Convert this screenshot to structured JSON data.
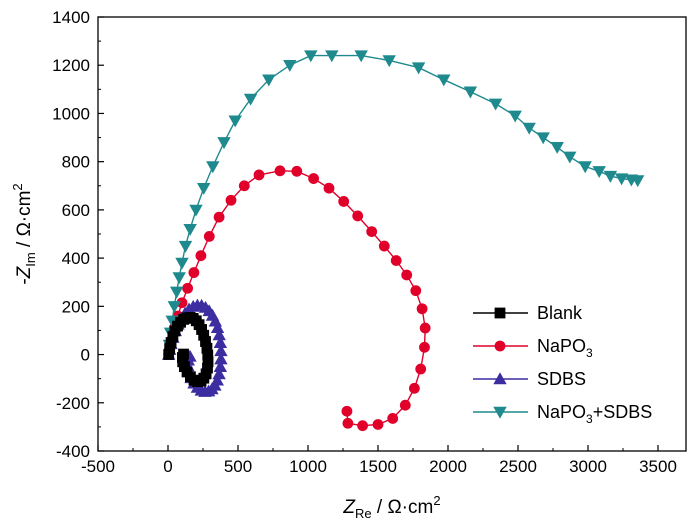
{
  "chart_data": {
    "type": "scatter",
    "title": "",
    "xlabel": {
      "symbol": "Z",
      "subscript": "Re",
      "units": " / Ω·cm",
      "superscript": "2"
    },
    "ylabel": {
      "prefix": "-",
      "symbol": "Z",
      "subscript": "Im",
      "units": " / Ω·cm",
      "superscript": "2"
    },
    "xlim": [
      -500,
      3700
    ],
    "ylim": [
      -400,
      1400
    ],
    "xticks": [
      -500,
      0,
      500,
      1000,
      1500,
      2000,
      2500,
      3000,
      3500
    ],
    "yticks": [
      -400,
      -200,
      0,
      200,
      400,
      600,
      800,
      1000,
      1200,
      1400
    ],
    "legend_position": "lower-right",
    "series": [
      {
        "name": "Blank",
        "legend": {
          "text": "Blank",
          "sub": "",
          "suffix": ""
        },
        "color": "#000000",
        "marker": "square",
        "x": [
          5,
          12,
          22,
          35,
          50,
          68,
          90,
          112,
          135,
          158,
          180,
          202,
          222,
          240,
          255,
          268,
          278,
          284,
          286,
          282,
          272,
          256,
          236,
          212,
          186,
          160,
          136,
          117,
          105,
          103,
          111
        ],
        "y": [
          0,
          25,
          50,
          75,
          98,
          118,
          134,
          146,
          152,
          154,
          150,
          140,
          124,
          104,
          80,
          54,
          26,
          -2,
          -30,
          -56,
          -80,
          -98,
          -110,
          -112,
          -106,
          -92,
          -72,
          -50,
          -30,
          -12,
          2
        ]
      },
      {
        "name": "NaPO3",
        "legend": {
          "text": "NaPO",
          "sub": "3",
          "suffix": ""
        },
        "color": "#e0002a",
        "marker": "circle",
        "x": [
          10,
          25,
          45,
          70,
          100,
          140,
          185,
          235,
          295,
          365,
          450,
          545,
          650,
          800,
          920,
          1040,
          1150,
          1255,
          1355,
          1455,
          1545,
          1630,
          1705,
          1770,
          1815,
          1837,
          1832,
          1805,
          1760,
          1695,
          1605,
          1500,
          1390,
          1285,
          1278
        ],
        "y": [
          20,
          60,
          110,
          160,
          215,
          275,
          340,
          410,
          490,
          570,
          640,
          700,
          745,
          762,
          760,
          730,
          690,
          635,
          575,
          510,
          450,
          390,
          330,
          265,
          190,
          110,
          30,
          -60,
          -140,
          -210,
          -265,
          -290,
          -295,
          -285,
          -235
        ]
      },
      {
        "name": "SDBS",
        "legend": {
          "text": "SDBS",
          "sub": "",
          "suffix": ""
        },
        "color": "#3c2da0",
        "marker": "triangle-up",
        "x": [
          5,
          12,
          22,
          35,
          52,
          72,
          96,
          122,
          150,
          180,
          210,
          240,
          268,
          294,
          318,
          338,
          354,
          366,
          374,
          378,
          378,
          374,
          365,
          352,
          335,
          314,
          290,
          264,
          237,
          210,
          186,
          165,
          150,
          142,
          145,
          157
        ],
        "y": [
          0,
          20,
          44,
          70,
          98,
          125,
          150,
          171,
          188,
          199,
          204,
          203,
          195,
          181,
          162,
          138,
          111,
          81,
          49,
          15,
          -19,
          -51,
          -81,
          -107,
          -128,
          -143,
          -152,
          -154,
          -149,
          -137,
          -119,
          -97,
          -72,
          -47,
          -24,
          -8
        ]
      },
      {
        "name": "NaPO3+SDBS",
        "legend": {
          "text": "NaPO",
          "sub": "3",
          "suffix": "+SDBS"
        },
        "color": "#1f8a8e",
        "marker": "triangle-down",
        "x": [
          10,
          18,
          30,
          45,
          62,
          80,
          100,
          125,
          158,
          200,
          255,
          320,
          400,
          480,
          590,
          720,
          870,
          1020,
          1170,
          1380,
          1580,
          1790,
          1970,
          2160,
          2340,
          2480,
          2580,
          2680,
          2780,
          2870,
          2980,
          3080,
          3160,
          3240,
          3310,
          3355
        ],
        "y": [
          40,
          90,
          140,
          200,
          260,
          320,
          380,
          450,
          520,
          600,
          690,
          780,
          880,
          970,
          1060,
          1140,
          1200,
          1240,
          1240,
          1240,
          1220,
          1190,
          1140,
          1090,
          1040,
          990,
          940,
          900,
          860,
          820,
          780,
          760,
          740,
          730,
          725,
          722
        ]
      }
    ]
  }
}
